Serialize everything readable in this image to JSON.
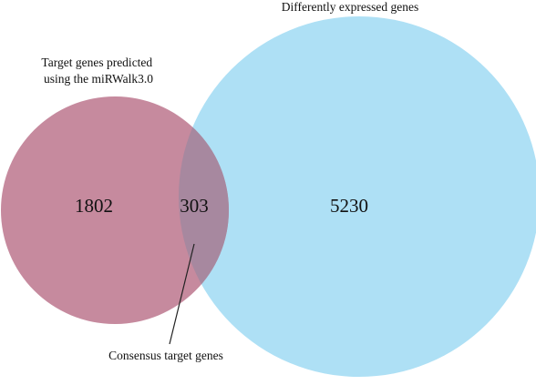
{
  "diagram": {
    "type": "venn",
    "sets": [
      {
        "id": "mirwalk",
        "label_lines": [
          "Target genes predicted",
          "using the miRWalk3.0"
        ],
        "count_only": "1802",
        "color": "#c68a9e"
      },
      {
        "id": "deg",
        "label_lines": [
          "Differently expressed genes"
        ],
        "count_only": "5230",
        "color": "#aee0f5"
      }
    ],
    "overlap": {
      "count": "303",
      "color": "#a7889f",
      "callout_label": "Consensus target genes"
    }
  }
}
